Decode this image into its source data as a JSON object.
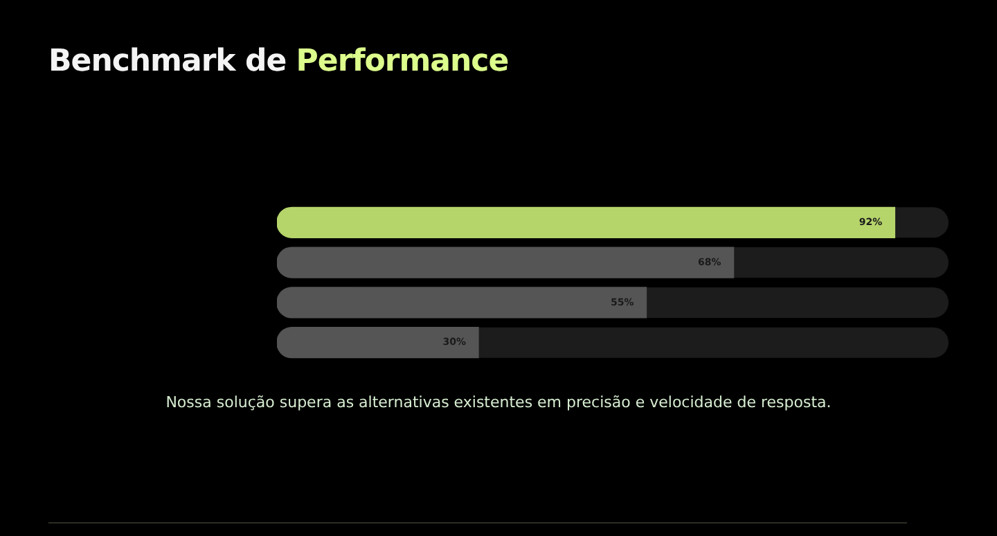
{
  "chart_data": {
    "type": "bar",
    "orientation": "horizontal",
    "title": "Benchmark de Performance",
    "categories": [
      null,
      null,
      null,
      null
    ],
    "values": [
      92,
      68,
      55,
      30
    ],
    "value_labels": [
      "92%",
      "68%",
      "55%",
      "30%"
    ],
    "colors": [
      "#b5d46a",
      "#555555",
      "#555555",
      "#555555"
    ],
    "grid": false,
    "legend": false,
    "annotations": [
      "Nossa solução supera as alternativas existentes em precisão e velocidade de resposta."
    ]
  }
}
